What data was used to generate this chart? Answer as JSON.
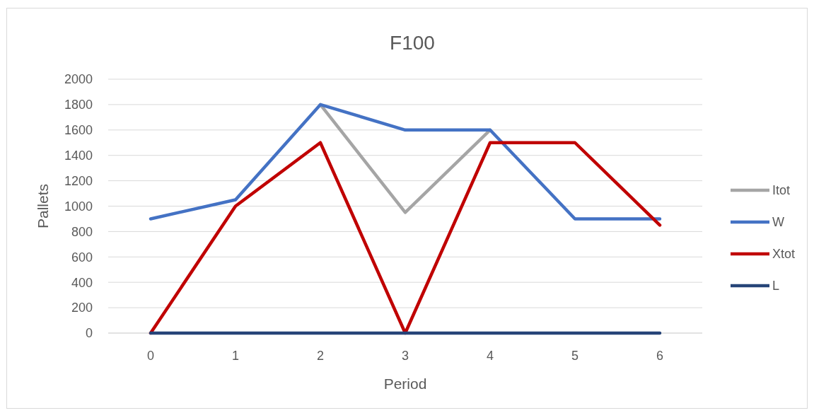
{
  "chart_data": {
    "type": "line",
    "title": "F100",
    "xlabel": "Period",
    "ylabel": "Pallets",
    "categories": [
      "0",
      "1",
      "2",
      "3",
      "4",
      "5",
      "6"
    ],
    "ylim": [
      0,
      2000
    ],
    "yticks": [
      0,
      200,
      400,
      600,
      800,
      1000,
      1200,
      1400,
      1600,
      1800,
      2000
    ],
    "grid": "y",
    "legend": "right",
    "marker": "none",
    "line_style": "solid",
    "series": [
      {
        "name": "Itot",
        "color": "#a5a5a5",
        "values": [
          null,
          null,
          1800,
          950,
          1600,
          null,
          null
        ]
      },
      {
        "name": "W",
        "color": "#4472c4",
        "values": [
          900,
          1050,
          1800,
          1600,
          1600,
          900,
          900
        ]
      },
      {
        "name": "Xtot",
        "color": "#c00000",
        "values": [
          0,
          1000,
          1500,
          0,
          1500,
          1500,
          850
        ]
      },
      {
        "name": "L",
        "color": "#264478",
        "values": [
          0,
          0,
          0,
          0,
          0,
          0,
          0
        ]
      }
    ]
  }
}
